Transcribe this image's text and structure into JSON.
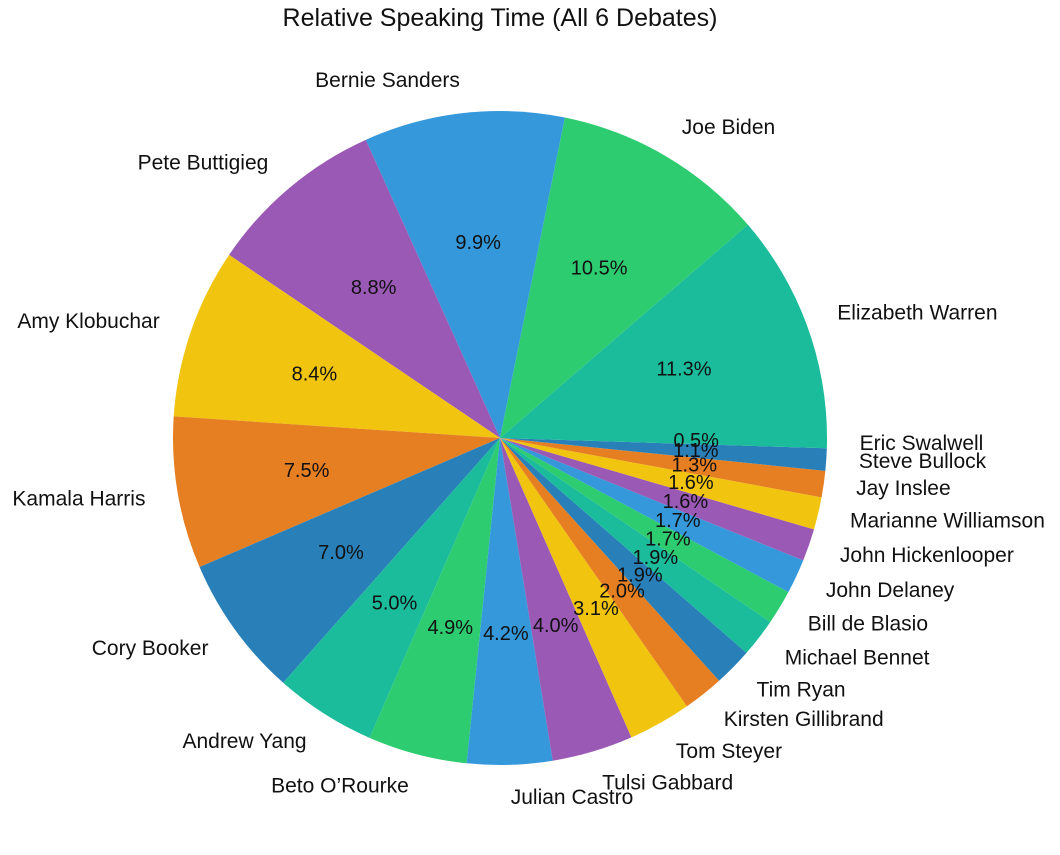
{
  "chart_data": {
    "type": "pie",
    "title": "Relative Speaking Time (All 6 Debates)",
    "start_angle_deg": 0,
    "direction": "counterclockwise",
    "slices": [
      {
        "label": "Elizabeth Warren",
        "value": 11.3,
        "pct_label": "11.3%",
        "color": "#1abc9c"
      },
      {
        "label": "Joe Biden",
        "value": 10.5,
        "pct_label": "10.5%",
        "color": "#2ecc71"
      },
      {
        "label": "Bernie Sanders",
        "value": 9.9,
        "pct_label": "9.9%",
        "color": "#3498db"
      },
      {
        "label": "Pete Buttigieg",
        "value": 8.8,
        "pct_label": "8.8%",
        "color": "#9b59b6"
      },
      {
        "label": "Amy Klobuchar",
        "value": 8.4,
        "pct_label": "8.4%",
        "color": "#f1c40f"
      },
      {
        "label": "Kamala Harris",
        "value": 7.5,
        "pct_label": "7.5%",
        "color": "#e67e22"
      },
      {
        "label": "Cory Booker",
        "value": 7.0,
        "pct_label": "7.0%",
        "color": "#2980b9"
      },
      {
        "label": "Andrew Yang",
        "value": 5.0,
        "pct_label": "5.0%",
        "color": "#1abc9c"
      },
      {
        "label": "Beto O’Rourke",
        "value": 4.9,
        "pct_label": "4.9%",
        "color": "#2ecc71"
      },
      {
        "label": "Julian Castro",
        "value": 4.2,
        "pct_label": "4.2%",
        "color": "#3498db"
      },
      {
        "label": "Tulsi Gabbard",
        "value": 4.0,
        "pct_label": "4.0%",
        "color": "#9b59b6"
      },
      {
        "label": "Tom Steyer",
        "value": 3.1,
        "pct_label": "3.1%",
        "color": "#f1c40f"
      },
      {
        "label": "Kirsten Gillibrand",
        "value": 2.0,
        "pct_label": "2.0%",
        "color": "#e67e22"
      },
      {
        "label": "Tim Ryan",
        "value": 1.9,
        "pct_label": "1.9%",
        "color": "#2980b9"
      },
      {
        "label": "Michael Bennet",
        "value": 1.9,
        "pct_label": "1.9%",
        "color": "#1abc9c"
      },
      {
        "label": "Bill de Blasio",
        "value": 1.7,
        "pct_label": "1.7%",
        "color": "#2ecc71"
      },
      {
        "label": "John Delaney",
        "value": 1.7,
        "pct_label": "1.7%",
        "color": "#3498db"
      },
      {
        "label": "John Hickenlooper",
        "value": 1.6,
        "pct_label": "1.6%",
        "color": "#9b59b6"
      },
      {
        "label": "Marianne Williamson",
        "value": 1.6,
        "pct_label": "1.6%",
        "color": "#f1c40f"
      },
      {
        "label": "Jay Inslee",
        "value": 1.3,
        "pct_label": "1.3%",
        "color": "#e67e22"
      },
      {
        "label": "Steve Bullock",
        "value": 1.1,
        "pct_label": "1.1%",
        "color": "#2980b9"
      },
      {
        "label": "Eric Swalwell",
        "value": 0.5,
        "pct_label": "0.5%",
        "color": "#1abc9c"
      }
    ]
  }
}
